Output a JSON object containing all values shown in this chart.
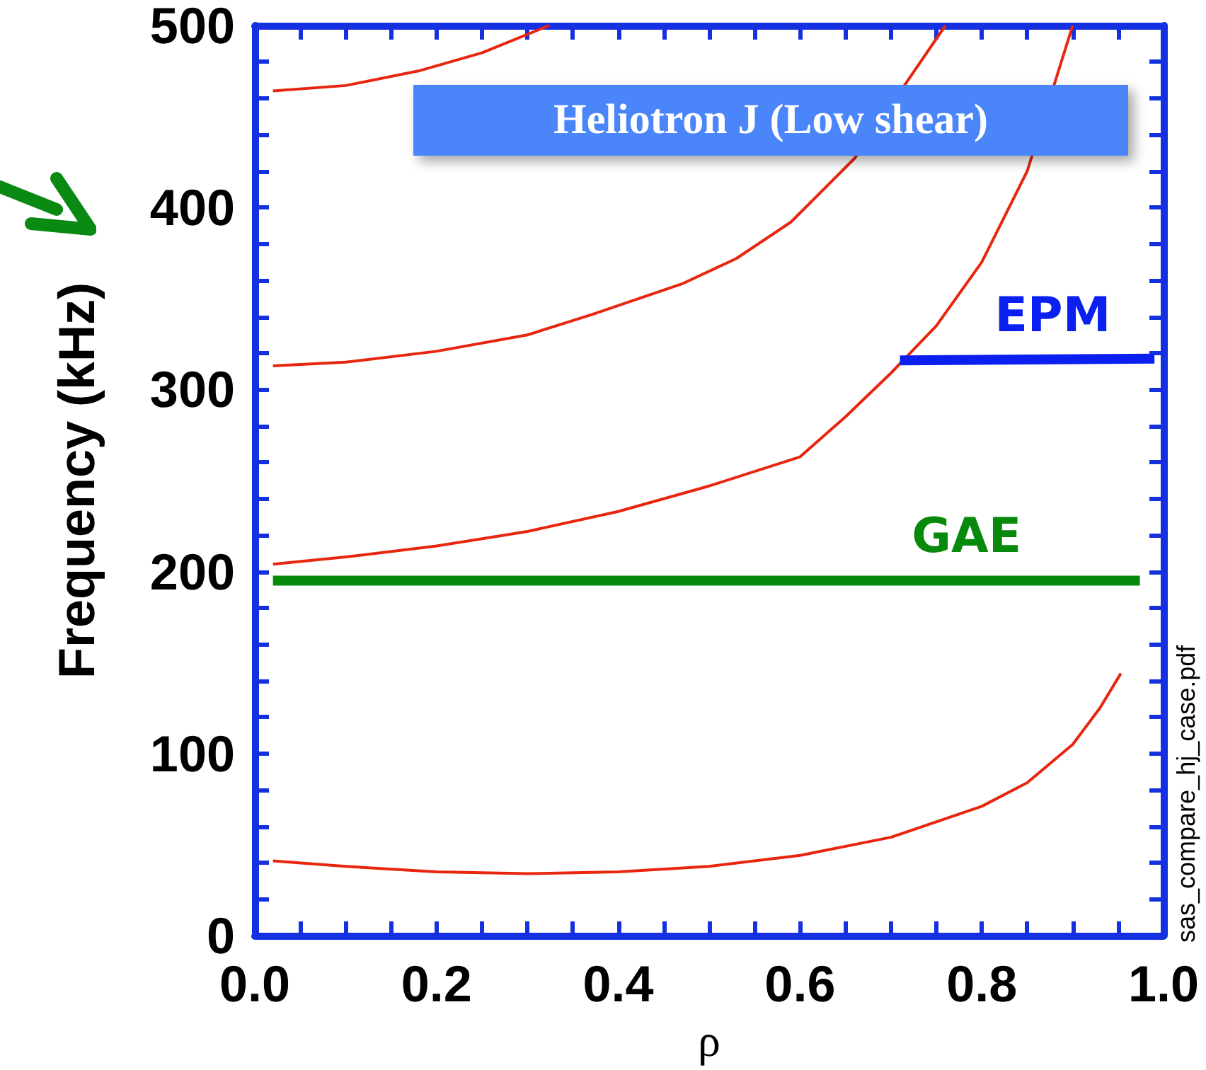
{
  "chart_data": {
    "type": "line",
    "title": "Heliotron J (Low shear)",
    "xlabel": "ρ",
    "ylabel": "Frequency (kHz)",
    "annotations": [
      "sas_compare_hj_case.pdf"
    ],
    "xlim": [
      0,
      1
    ],
    "ylim": [
      0,
      500
    ],
    "xticks": [
      {
        "value": 0,
        "label": "0.0"
      },
      {
        "value": 0.05,
        "label": null
      },
      {
        "value": 0.1,
        "label": null
      },
      {
        "value": 0.15,
        "label": null
      },
      {
        "value": 0.2,
        "label": "0.2"
      },
      {
        "value": 0.25,
        "label": null
      },
      {
        "value": 0.3,
        "label": null
      },
      {
        "value": 0.35,
        "label": null
      },
      {
        "value": 0.4,
        "label": "0.4"
      },
      {
        "value": 0.45,
        "label": null
      },
      {
        "value": 0.5,
        "label": null
      },
      {
        "value": 0.55,
        "label": null
      },
      {
        "value": 0.6,
        "label": "0.6"
      },
      {
        "value": 0.65,
        "label": null
      },
      {
        "value": 0.7,
        "label": null
      },
      {
        "value": 0.75,
        "label": null
      },
      {
        "value": 0.8,
        "label": "0.8"
      },
      {
        "value": 0.85,
        "label": null
      },
      {
        "value": 0.9,
        "label": null
      },
      {
        "value": 0.95,
        "label": null
      },
      {
        "value": 1,
        "label": "1.0"
      }
    ],
    "yticks": [
      0,
      {
        "value": 20,
        "label": null
      },
      {
        "value": 40,
        "label": null
      },
      {
        "value": 60,
        "label": null
      },
      {
        "value": 80,
        "label": null
      },
      100,
      {
        "value": 120,
        "label": null
      },
      {
        "value": 140,
        "label": null
      },
      {
        "value": 160,
        "label": null
      },
      {
        "value": 180,
        "label": null
      },
      200,
      {
        "value": 220,
        "label": null
      },
      {
        "value": 240,
        "label": null
      },
      {
        "value": 260,
        "label": null
      },
      {
        "value": 280,
        "label": null
      },
      300,
      {
        "value": 320,
        "label": null
      },
      {
        "value": 340,
        "label": null
      },
      {
        "value": 360,
        "label": null
      },
      {
        "value": 380,
        "label": null
      },
      400,
      {
        "value": 420,
        "label": null
      },
      {
        "value": 440,
        "label": null
      },
      {
        "value": 460,
        "label": null
      },
      {
        "value": 480,
        "label": null
      },
      500
    ],
    "grid": false,
    "legend": false,
    "marker": "none",
    "line_style": "solid",
    "series": [
      {
        "color": "#e8260f",
        "x": [
          0.02,
          0.1,
          0.2,
          0.3,
          0.4,
          0.5,
          0.6,
          0.7,
          0.8,
          0.85,
          0.9,
          0.93,
          0.953
        ],
        "values": [
          41,
          38,
          35,
          34,
          35,
          38,
          44,
          54,
          71,
          84,
          105,
          125,
          144
        ]
      },
      {
        "color": "#e8260f",
        "x": [
          0.02,
          0.1,
          0.2,
          0.3,
          0.4,
          0.5,
          0.6,
          0.65,
          0.7,
          0.75,
          0.8,
          0.85,
          0.9
        ],
        "values": [
          204,
          208,
          214,
          222,
          233,
          247,
          263,
          285,
          309,
          335,
          370,
          420,
          500
        ]
      },
      {
        "color": "#e8260f",
        "x": [
          0.02,
          0.1,
          0.2,
          0.3,
          0.37,
          0.47,
          0.53,
          0.59,
          0.66,
          0.76
        ],
        "values": [
          313,
          315,
          321,
          330,
          341,
          358,
          372,
          392,
          427,
          500
        ]
      },
      {
        "color": "#e8260f",
        "x": [
          0.02,
          0.1,
          0.18,
          0.25,
          0.324
        ],
        "values": [
          464,
          467,
          475,
          485,
          500
        ]
      },
      {
        "name": "GAE",
        "color": "#078a0c",
        "x": [
          0.02,
          0.974
        ],
        "values": [
          195,
          195
        ]
      },
      {
        "name": "EPM",
        "color": "#0a1ff0",
        "x": [
          0.71,
          0.99
        ],
        "values": [
          316,
          317
        ]
      }
    ]
  }
}
